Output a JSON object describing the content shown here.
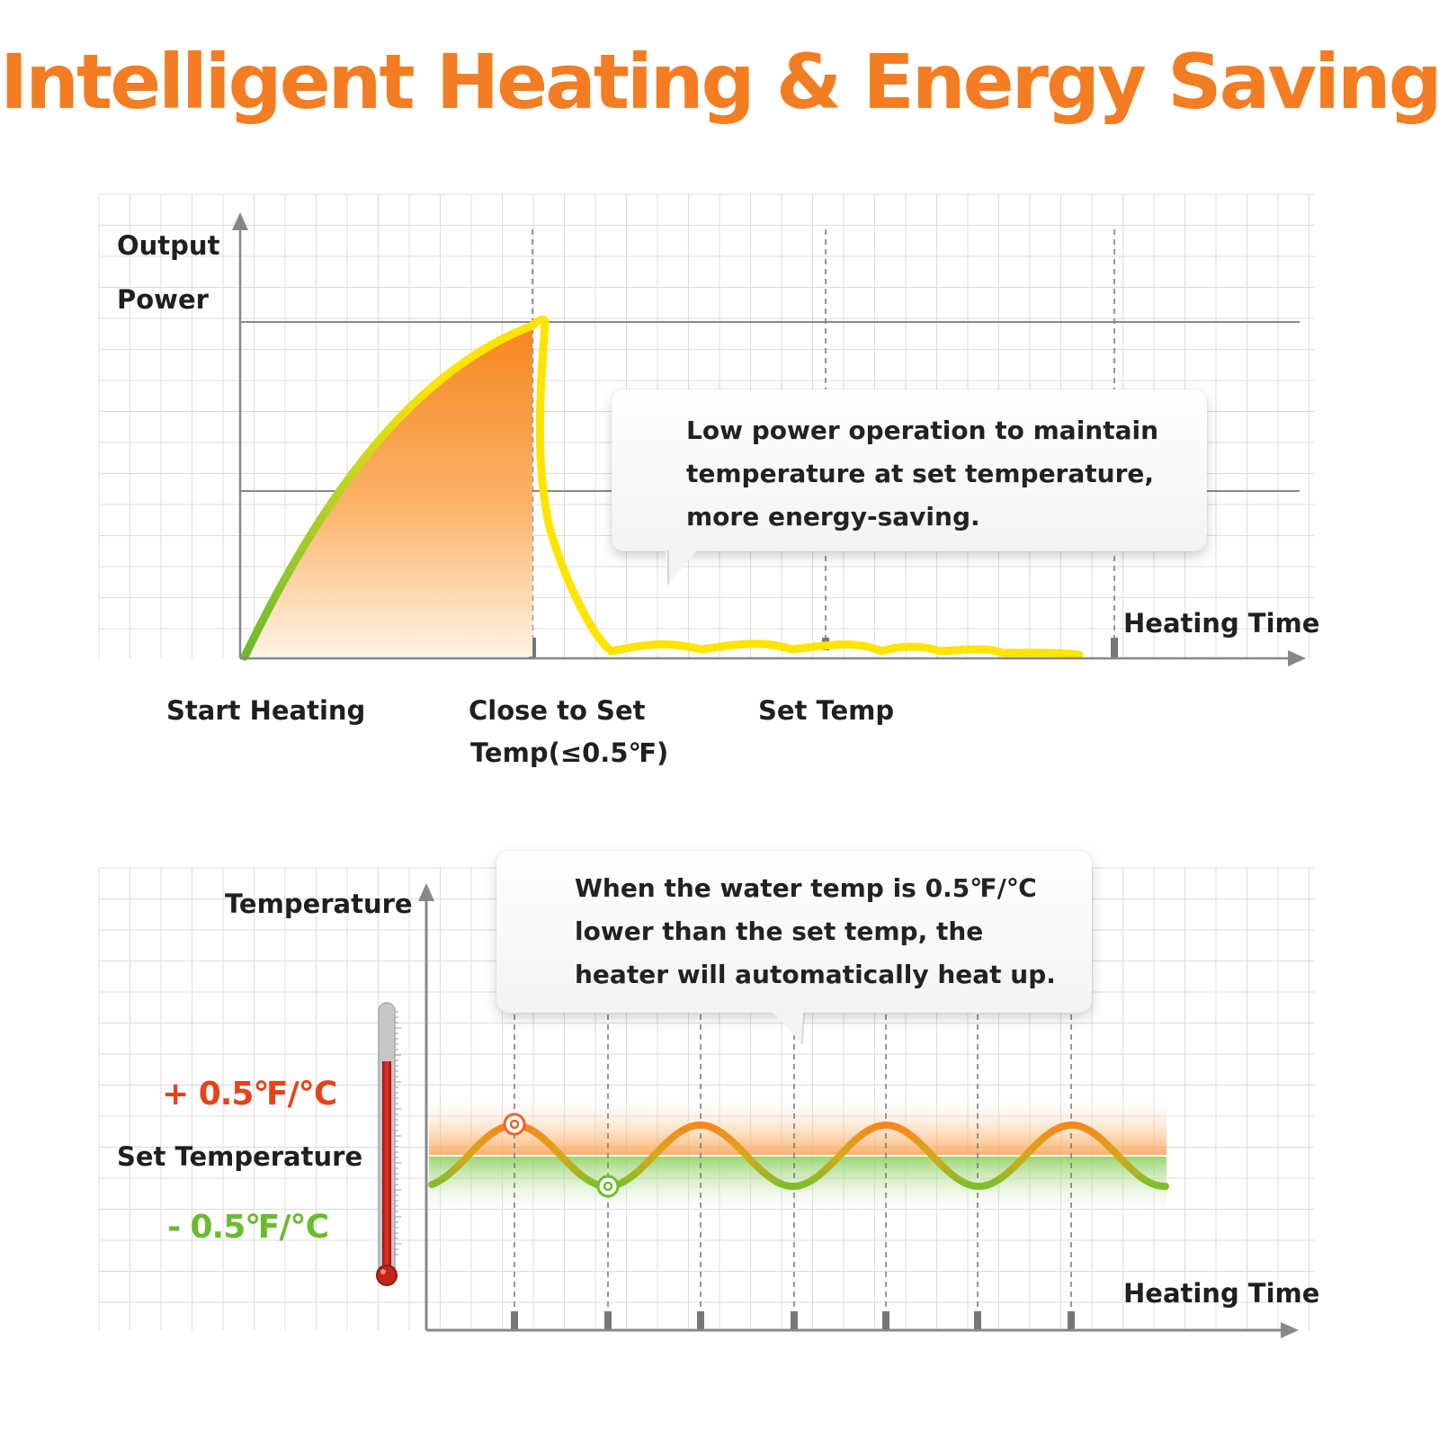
{
  "title": "Intelligent Heating & Energy Saving",
  "colors": {
    "title": "#f47c22",
    "orange": "#f7861f",
    "yellow": "#ffe400",
    "green": "#6abb2e",
    "red_text": "#e8421a",
    "green_text": "#6abb2e",
    "grid": "#d7d7d7",
    "axis": "#888888"
  },
  "chart_top": {
    "y_axis_label": [
      "Output",
      "Power"
    ],
    "x_axis_label": "Heating Time",
    "stages": [
      {
        "id": "start",
        "lines": [
          "Start Heating"
        ]
      },
      {
        "id": "close",
        "lines": [
          "Close to Set",
          "Temp(≤0.5℉)"
        ]
      },
      {
        "id": "set",
        "lines": [
          "Set Temp"
        ]
      }
    ],
    "callout": [
      "Low power operation to maintain",
      "temperature at set temperature,",
      "more energy-saving."
    ]
  },
  "chart_bottom": {
    "y_axis_label": "Temperature",
    "x_axis_label": "Heating Time",
    "upper_band_label": "+ 0.5℉/℃",
    "set_label": "Set Temperature",
    "lower_band_label": "- 0.5℉/℃",
    "callout": [
      "When the water temp is 0.5℉/℃",
      "lower than the set temp, the",
      "heater will automatically heat up."
    ]
  },
  "icons": {
    "thermometer": "thermometer-icon",
    "up_arrow": "arrow-up-icon",
    "right_arrow": "arrow-right-icon"
  }
}
